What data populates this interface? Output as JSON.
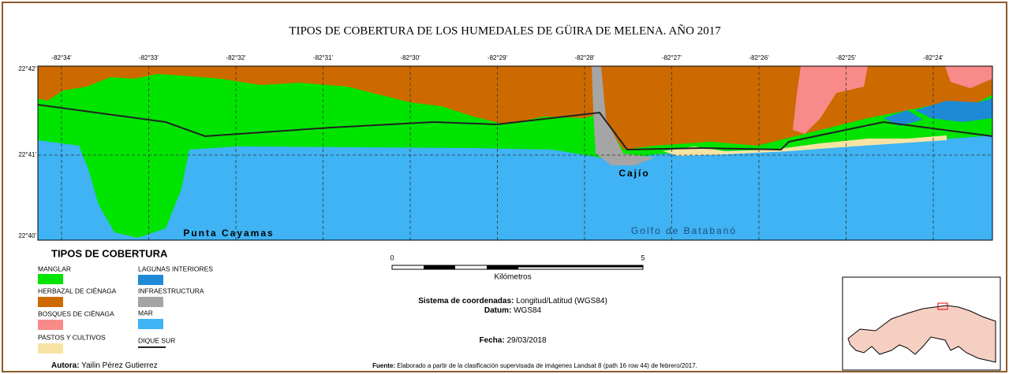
{
  "title": "TIPOS DE COBERTURA DE LOS HUMEDALES DE GÜIRA DE MELENA. AÑO 2017",
  "longitude_labels": [
    "-82°34'",
    "-82°33'",
    "-82°32'",
    "-82°31'",
    "-82°30'",
    "-82°29'",
    "-82°28'",
    "-82°27'",
    "-82°26'",
    "-82°25'",
    "-82°24'"
  ],
  "latitude_labels": [
    "22°42'",
    "22°41'",
    "22°40'"
  ],
  "place_labels": {
    "cajio": "Cajío",
    "punta": "Punta Cayamas",
    "golfo": "Golfo de Batabanó"
  },
  "legend": {
    "title": "TIPOS DE COBERTURA",
    "items": [
      "MANGLAR",
      "HERBAZAL DE CIÉNAGA",
      "BOSQUES DE CIÉNAGA",
      "PASTOS Y CULTIVOS",
      "LAGUNAS INTERIORES",
      "INFRAESTRUCTURA",
      "MAR",
      "DIQUE SUR"
    ]
  },
  "scale_bar": {
    "start": "0",
    "end": "5",
    "unit": "Kilómetros"
  },
  "coordinate_system": {
    "label": "Sistema de coordenadas:",
    "value": "Longitud/Latitud (WGS84)"
  },
  "datum": {
    "label": "Datum:",
    "value": "WGS84"
  },
  "date": {
    "label": "Fecha:",
    "value": "29/03/2018"
  },
  "author": {
    "label": "Autora:",
    "value": "Yailin Pérez Gutierrez"
  },
  "source": {
    "label": "Fuente:",
    "value": "Elaborado a partir de la clasificación supervisada de imágenes Landsat 8 (path 16 row 44) de febrero/2017."
  }
}
